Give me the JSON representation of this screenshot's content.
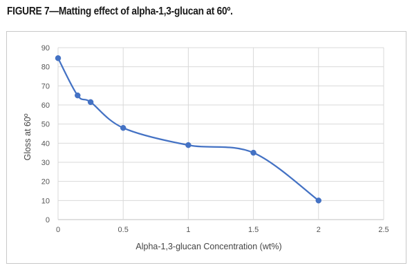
{
  "figure": {
    "title": "FIGURE 7—Matting effect of alpha-1,3-glucan at 60º."
  },
  "chart_data": {
    "type": "line",
    "title": "",
    "xlabel": "Alpha-1,3-glucan Concentration (wt%)",
    "ylabel": "Gloss at 60º",
    "xlim": [
      0,
      2.5
    ],
    "ylim": [
      0,
      90
    ],
    "x_ticks": [
      "0",
      "0.5",
      "1",
      "1.5",
      "2",
      "2.5"
    ],
    "y_ticks": [
      "0",
      "10",
      "20",
      "30",
      "40",
      "50",
      "60",
      "70",
      "80",
      "90"
    ],
    "grid": true,
    "smooth": true,
    "line_color": "#4472c4",
    "marker_color": "#4472c4",
    "series": [
      {
        "x": [
          0,
          0.15,
          0.25,
          0.5,
          1,
          1.5,
          2
        ],
        "y": [
          84.5,
          65,
          61.5,
          48,
          39,
          35,
          10
        ]
      }
    ]
  }
}
